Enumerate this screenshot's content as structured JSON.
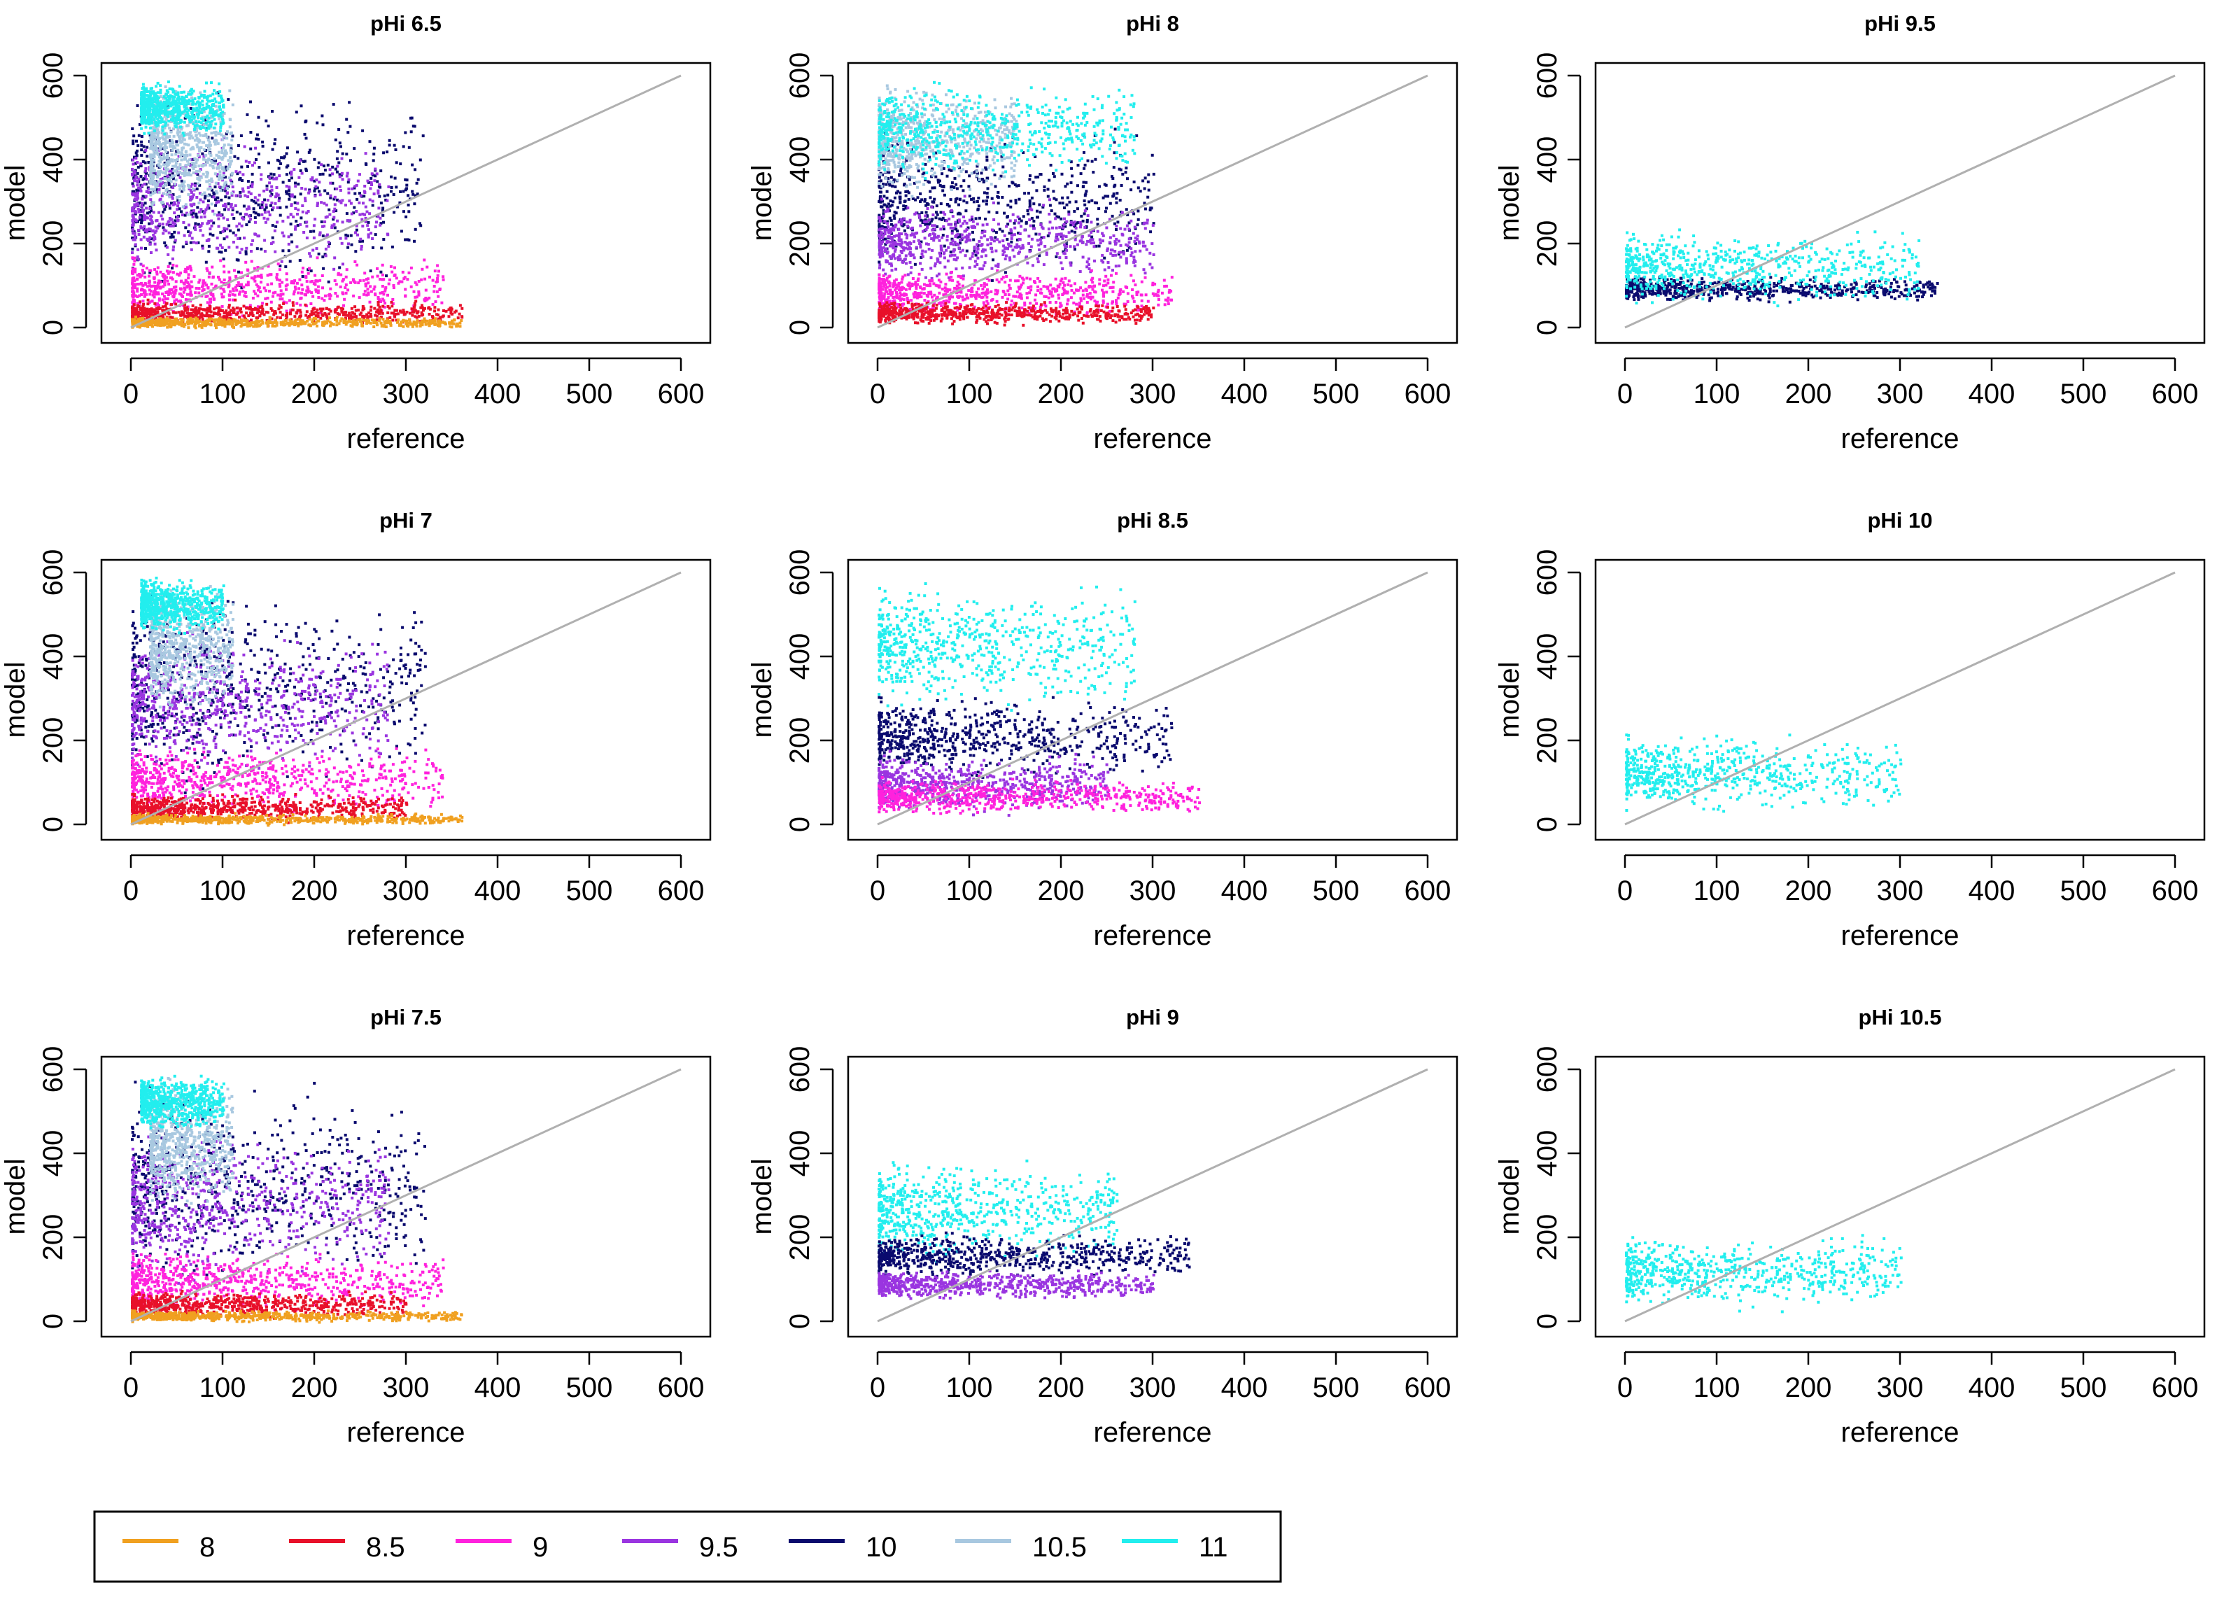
{
  "chart_data": {
    "type": "scatter",
    "layout": {
      "rows": 3,
      "cols": 3,
      "order": "column-major"
    },
    "xlabel": "reference",
    "ylabel": "model",
    "xlim": [
      0,
      600
    ],
    "ylim": [
      0,
      600
    ],
    "xticks": [
      0,
      100,
      200,
      300,
      400,
      500,
      600
    ],
    "yticks": [
      0,
      200,
      400,
      600
    ],
    "grid": false,
    "reference_line": {
      "from": [
        0,
        0
      ],
      "to": [
        600,
        600
      ],
      "color": "#b0b0b0"
    },
    "legend": {
      "placement": "bottom-left",
      "entries": [
        {
          "label": "8",
          "color": "#f0a020"
        },
        {
          "label": "8.5",
          "color": "#e8102a"
        },
        {
          "label": "9",
          "color": "#ff22dd"
        },
        {
          "label": "9.5",
          "color": "#9a35e0"
        },
        {
          "label": "10",
          "color": "#0a0a6e"
        },
        {
          "label": "10.5",
          "color": "#a8c8e0"
        },
        {
          "label": "11",
          "color": "#22eeee"
        }
      ]
    },
    "panels": [
      {
        "title": "pHi 6.5",
        "clusters": [
          {
            "series": "10",
            "x": [
              0,
              320
            ],
            "y": [
              60,
              600
            ]
          },
          {
            "series": "9.5",
            "x": [
              0,
              280
            ],
            "y": [
              100,
              480
            ]
          },
          {
            "series": "10.5",
            "x": [
              20,
              110
            ],
            "y": [
              250,
              600
            ]
          },
          {
            "series": "11",
            "x": [
              10,
              100
            ],
            "y": [
              450,
              600
            ]
          },
          {
            "series": "9",
            "x": [
              0,
              340
            ],
            "y": [
              20,
              180
            ]
          },
          {
            "series": "8.5",
            "x": [
              0,
              360
            ],
            "y": [
              5,
              70
            ]
          },
          {
            "series": "8",
            "x": [
              0,
              360
            ],
            "y": [
              0,
              30
            ]
          }
        ]
      },
      {
        "title": "pHi 7",
        "clusters": [
          {
            "series": "10",
            "x": [
              0,
              320
            ],
            "y": [
              60,
              600
            ]
          },
          {
            "series": "9.5",
            "x": [
              0,
              280
            ],
            "y": [
              100,
              480
            ]
          },
          {
            "series": "10.5",
            "x": [
              20,
              110
            ],
            "y": [
              250,
              600
            ]
          },
          {
            "series": "11",
            "x": [
              10,
              100
            ],
            "y": [
              450,
              600
            ]
          },
          {
            "series": "9",
            "x": [
              0,
              340
            ],
            "y": [
              20,
              200
            ]
          },
          {
            "series": "8.5",
            "x": [
              0,
              300
            ],
            "y": [
              5,
              80
            ]
          },
          {
            "series": "8",
            "x": [
              0,
              360
            ],
            "y": [
              0,
              30
            ]
          }
        ]
      },
      {
        "title": "pHi 7.5",
        "clusters": [
          {
            "series": "10",
            "x": [
              0,
              320
            ],
            "y": [
              60,
              600
            ]
          },
          {
            "series": "9.5",
            "x": [
              0,
              280
            ],
            "y": [
              80,
              480
            ]
          },
          {
            "series": "10.5",
            "x": [
              20,
              110
            ],
            "y": [
              250,
              600
            ]
          },
          {
            "series": "11",
            "x": [
              10,
              100
            ],
            "y": [
              450,
              600
            ]
          },
          {
            "series": "9",
            "x": [
              0,
              340
            ],
            "y": [
              20,
              180
            ]
          },
          {
            "series": "8.5",
            "x": [
              0,
              300
            ],
            "y": [
              5,
              80
            ]
          },
          {
            "series": "8",
            "x": [
              0,
              360
            ],
            "y": [
              0,
              30
            ]
          }
        ]
      },
      {
        "title": "pHi 8",
        "clusters": [
          {
            "series": "10",
            "x": [
              0,
              300
            ],
            "y": [
              100,
              500
            ]
          },
          {
            "series": "9.5",
            "x": [
              0,
              300
            ],
            "y": [
              100,
              320
            ]
          },
          {
            "series": "10.5",
            "x": [
              0,
              150
            ],
            "y": [
              300,
              600
            ]
          },
          {
            "series": "11",
            "x": [
              0,
              280
            ],
            "y": [
              350,
              600
            ]
          },
          {
            "series": "9",
            "x": [
              0,
              320
            ],
            "y": [
              20,
              150
            ]
          },
          {
            "series": "8.5",
            "x": [
              0,
              300
            ],
            "y": [
              5,
              70
            ]
          }
        ]
      },
      {
        "title": "pHi 8.5",
        "clusters": [
          {
            "series": "11",
            "x": [
              0,
              280
            ],
            "y": [
              250,
              600
            ]
          },
          {
            "series": "10",
            "x": [
              0,
              320
            ],
            "y": [
              100,
              320
            ]
          },
          {
            "series": "9.5",
            "x": [
              0,
              250
            ],
            "y": [
              20,
              180
            ]
          },
          {
            "series": "9",
            "x": [
              0,
              350
            ],
            "y": [
              20,
              120
            ]
          }
        ]
      },
      {
        "title": "pHi 9",
        "clusters": [
          {
            "series": "11",
            "x": [
              0,
              260
            ],
            "y": [
              130,
              400
            ]
          },
          {
            "series": "10",
            "x": [
              0,
              340
            ],
            "y": [
              100,
              220
            ]
          },
          {
            "series": "9.5",
            "x": [
              0,
              300
            ],
            "y": [
              50,
              130
            ]
          }
        ]
      },
      {
        "title": "pHi 9.5",
        "clusters": [
          {
            "series": "10",
            "x": [
              0,
              340
            ],
            "y": [
              60,
              130
            ]
          },
          {
            "series": "11",
            "x": [
              0,
              320
            ],
            "y": [
              40,
              250
            ]
          }
        ]
      },
      {
        "title": "pHi 10",
        "clusters": [
          {
            "series": "11",
            "x": [
              0,
              300
            ],
            "y": [
              20,
              230
            ]
          }
        ]
      },
      {
        "title": "pHi 10.5",
        "clusters": [
          {
            "series": "11",
            "x": [
              0,
              300
            ],
            "y": [
              20,
              220
            ]
          }
        ]
      }
    ]
  }
}
